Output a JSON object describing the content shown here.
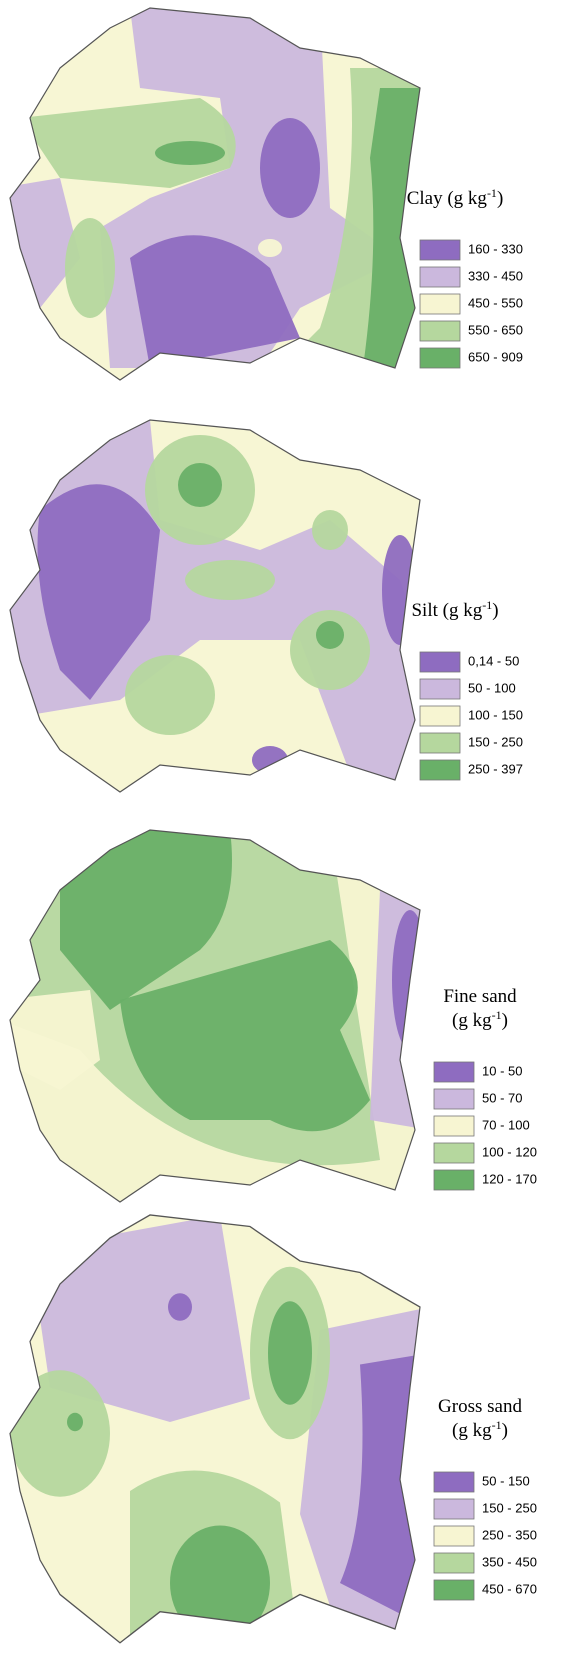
{
  "panels": [
    {
      "title": [
        {
          "text": "Clay (g kg",
          "sup": "-1",
          "after": ")"
        }
      ],
      "legend": [
        {
          "label": "160 - 330",
          "color": "#8e6cc0"
        },
        {
          "label": "330 - 450",
          "color": "#cbb8dd"
        },
        {
          "label": "450 - 550",
          "color": "#f7f5d2"
        },
        {
          "label": "550 - 650",
          "color": "#b5d79e"
        },
        {
          "label": "650 - 909",
          "color": "#69b068"
        }
      ]
    },
    {
      "title": [
        {
          "text": "Silt (g kg",
          "sup": "-1",
          "after": ")"
        }
      ],
      "legend": [
        {
          "label": "0,14 - 50",
          "color": "#8e6cc0"
        },
        {
          "label": "50 - 100",
          "color": "#cbb8dd"
        },
        {
          "label": "100 - 150",
          "color": "#f7f5d2"
        },
        {
          "label": "150 - 250",
          "color": "#b5d79e"
        },
        {
          "label": "250 - 397",
          "color": "#69b068"
        }
      ]
    },
    {
      "title": [
        {
          "text": "Fine sand"
        },
        {
          "text": "(g kg",
          "sup": "-1",
          "after": ")"
        }
      ],
      "legend": [
        {
          "label": "10 - 50",
          "color": "#8e6cc0"
        },
        {
          "label": "50 - 70",
          "color": "#cbb8dd"
        },
        {
          "label": "70 - 100",
          "color": "#f7f5d2"
        },
        {
          "label": "100 - 120",
          "color": "#b5d79e"
        },
        {
          "label": "120 - 170",
          "color": "#69b068"
        }
      ]
    },
    {
      "title": [
        {
          "text": "Gross sand"
        },
        {
          "text": "(g kg",
          "sup": "-1",
          "after": ")"
        }
      ],
      "legend": [
        {
          "label": "50 - 150",
          "color": "#8e6cc0"
        },
        {
          "label": "150 - 250",
          "color": "#cbb8dd"
        },
        {
          "label": "250 - 350",
          "color": "#f7f5d2"
        },
        {
          "label": "350 - 450",
          "color": "#b5d79e"
        },
        {
          "label": "450 - 670",
          "color": "#69b068"
        }
      ]
    }
  ]
}
